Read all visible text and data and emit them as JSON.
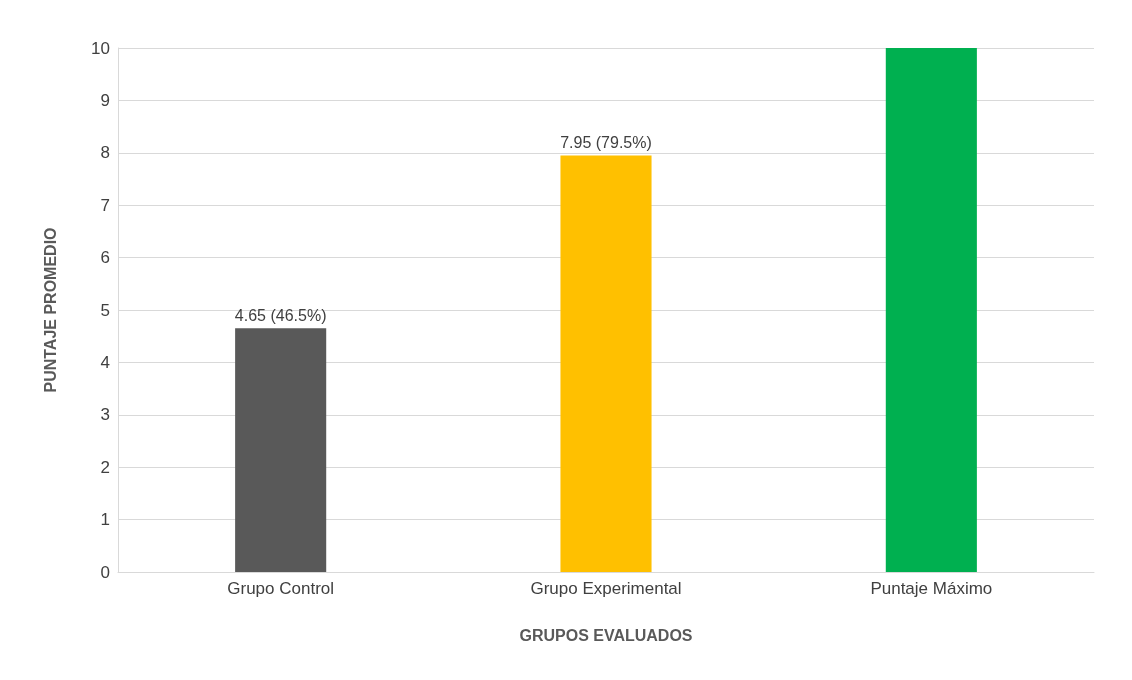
{
  "chart_data": {
    "type": "bar",
    "xlabel": "GRUPOS EVALUADOS",
    "ylabel": "PUNTAJE PROMEDIO",
    "categories": [
      "Grupo Control",
      "Grupo Experimental",
      "Puntaje Máximo"
    ],
    "values": [
      4.65,
      7.95,
      10
    ],
    "colors": [
      "#595959",
      "#ffc000",
      "#00b050"
    ],
    "value_labels": [
      "4.65 (46.5%)",
      "7.95 (79.5%)",
      null
    ],
    "ylim": [
      0,
      10
    ],
    "yticks": [
      0,
      1,
      2,
      3,
      4,
      5,
      6,
      7,
      8,
      9,
      10
    ],
    "grid": "y"
  }
}
